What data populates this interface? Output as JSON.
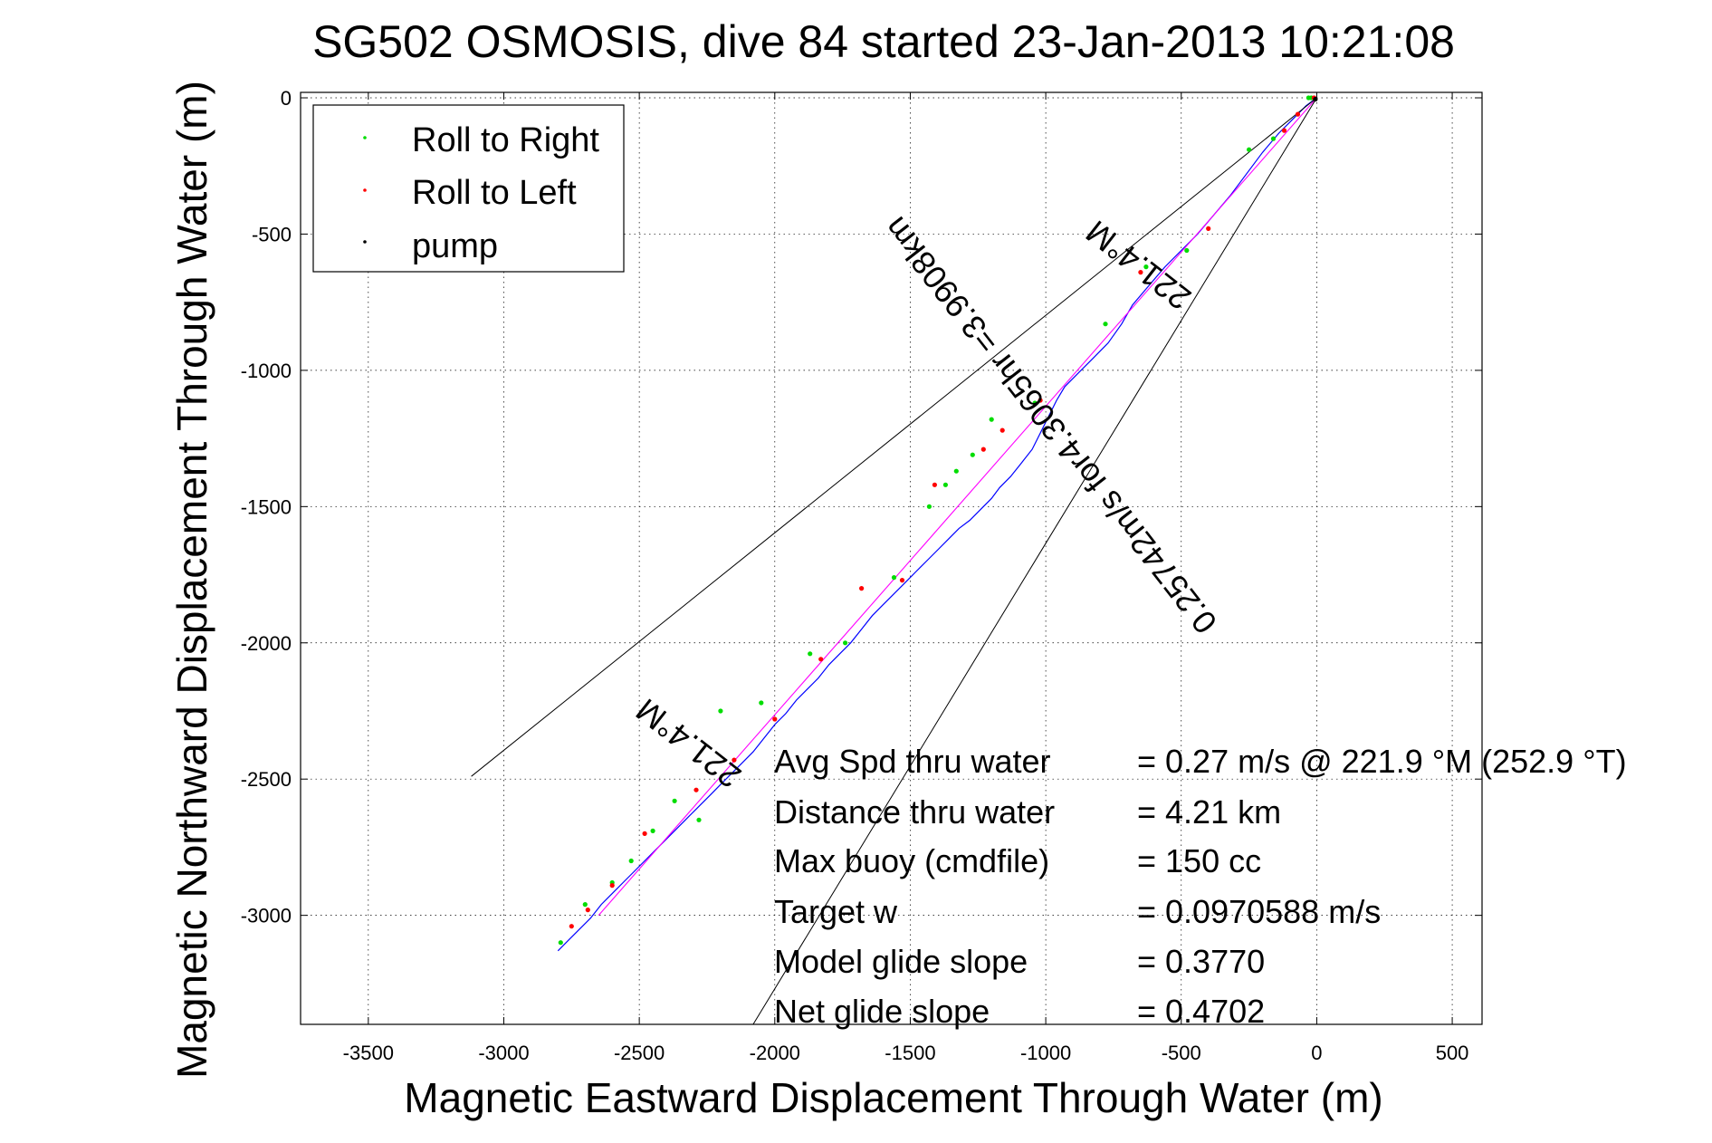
{
  "chart_data": {
    "type": "line",
    "title": "SG502 OSMOSIS, dive 84 started 23-Jan-2013 10:21:08",
    "xlabel": "Magnetic Eastward Displacement Through Water (m)",
    "ylabel": "Magnetic Northward Displacement Through Water (m)",
    "xlim": [
      -3750,
      610
    ],
    "ylim": [
      -3400,
      20
    ],
    "xticks": [
      -3500,
      -3000,
      -2500,
      -2000,
      -1500,
      -1000,
      -500,
      0,
      500
    ],
    "yticks": [
      0,
      -500,
      -1000,
      -1500,
      -2000,
      -2500,
      -3000
    ],
    "grid": true,
    "legend_position": "top-left",
    "legend": [
      {
        "label": "Roll to Right",
        "color": "#00dd00"
      },
      {
        "label": "Roll to Left",
        "color": "#ff0000"
      },
      {
        "label": "pump",
        "color": "#000000"
      }
    ],
    "colors": {
      "track": "#0000ff",
      "model_track": "#ff00ff",
      "cone": "#000000",
      "roll_right": "#00dd00",
      "roll_left": "#ff0000",
      "pump": "#000000"
    },
    "series": [
      {
        "role": "track",
        "x": [
          0,
          -40,
          -80,
          -140,
          -200,
          -260,
          -320,
          -380,
          -440,
          -500,
          -560,
          -620,
          -680,
          -720,
          -770,
          -830,
          -880,
          -930,
          -960,
          -990,
          -1020,
          -1050,
          -1090,
          -1130,
          -1170,
          -1200,
          -1240,
          -1280,
          -1320,
          -1360,
          -1400,
          -1440,
          -1480,
          -1520,
          -1560,
          -1600,
          -1640,
          -1680,
          -1720,
          -1760,
          -1800,
          -1840,
          -1880,
          -1920,
          -1960,
          -2000,
          -2040,
          -2080,
          -2120,
          -2160,
          -2200,
          -2240,
          -2280,
          -2320,
          -2360,
          -2400,
          -2440,
          -2480,
          -2520,
          -2560,
          -2600,
          -2640,
          -2680,
          -2720,
          -2760,
          -2800
        ],
        "y": [
          0,
          -30,
          -70,
          -130,
          -200,
          -280,
          -360,
          -430,
          -500,
          -560,
          -620,
          -690,
          -760,
          -830,
          -900,
          -960,
          -1010,
          -1060,
          -1110,
          -1170,
          -1230,
          -1290,
          -1340,
          -1390,
          -1430,
          -1470,
          -1510,
          -1550,
          -1580,
          -1620,
          -1660,
          -1700,
          -1740,
          -1780,
          -1820,
          -1860,
          -1900,
          -1950,
          -2000,
          -2040,
          -2080,
          -2130,
          -2170,
          -2210,
          -2260,
          -2300,
          -2350,
          -2400,
          -2440,
          -2480,
          -2520,
          -2560,
          -2600,
          -2640,
          -2680,
          -2720,
          -2760,
          -2800,
          -2840,
          -2880,
          -2920,
          -2960,
          -3010,
          -3050,
          -3090,
          -3130
        ]
      },
      {
        "role": "model_track",
        "x": [
          0,
          -2650
        ],
        "y": [
          0,
          -3000
        ]
      },
      {
        "role": "cone",
        "x": [
          -3120,
          0,
          -2080
        ],
        "y": [
          -2490,
          0,
          -3400
        ]
      }
    ],
    "markers": {
      "roll_right": {
        "x": [
          -20,
          -30,
          -160,
          -250,
          -480,
          -630,
          -780,
          -1040,
          -1200,
          -1270,
          -1330,
          -1370,
          -1430,
          -1560,
          -1740,
          -1870,
          -2050,
          -2200,
          -2280,
          -2370,
          -2450,
          -2530,
          -2600,
          -2700,
          -2790
        ],
        "y": [
          0,
          0,
          -150,
          -190,
          -560,
          -620,
          -830,
          -1120,
          -1180,
          -1310,
          -1370,
          -1420,
          -1500,
          -1760,
          -2000,
          -2040,
          -2220,
          -2250,
          -2650,
          -2580,
          -2690,
          -2800,
          -2880,
          -2960,
          -3100
        ]
      },
      "roll_left": {
        "x": [
          -10,
          -70,
          -120,
          -400,
          -650,
          -1020,
          -1160,
          -1230,
          -1410,
          -1530,
          -1680,
          -1830,
          -2000,
          -2150,
          -2290,
          -2480,
          -2600,
          -2690,
          -2750
        ],
        "y": [
          0,
          -60,
          -120,
          -480,
          -640,
          -1110,
          -1220,
          -1290,
          -1420,
          -1770,
          -1800,
          -2060,
          -2280,
          -2430,
          -2540,
          -2700,
          -2890,
          -2980,
          -3040
        ]
      },
      "pump": {
        "x": [
          -5
        ],
        "y": [
          -5
        ]
      }
    },
    "annotations": {
      "heading_top": "221.4°M",
      "speed_line": "0.25742m/s for4.3065hr =3.9908km",
      "heading_bottom": "221.4°M"
    },
    "stats": [
      {
        "label": "Avg Spd thru water",
        "value": "=  0.27 m/s @ 221.9 °M (252.9 °T)"
      },
      {
        "label": "Distance thru water",
        "value": "=  4.21 km"
      },
      {
        "label": "Max buoy (cmdfile)",
        "value": "= 150 cc"
      },
      {
        "label": "Target w",
        "value": "= 0.0970588 m/s"
      },
      {
        "label": "Model glide slope",
        "value": "= 0.3770"
      },
      {
        "label": "Net glide slope",
        "value": "= 0.4702"
      }
    ]
  }
}
